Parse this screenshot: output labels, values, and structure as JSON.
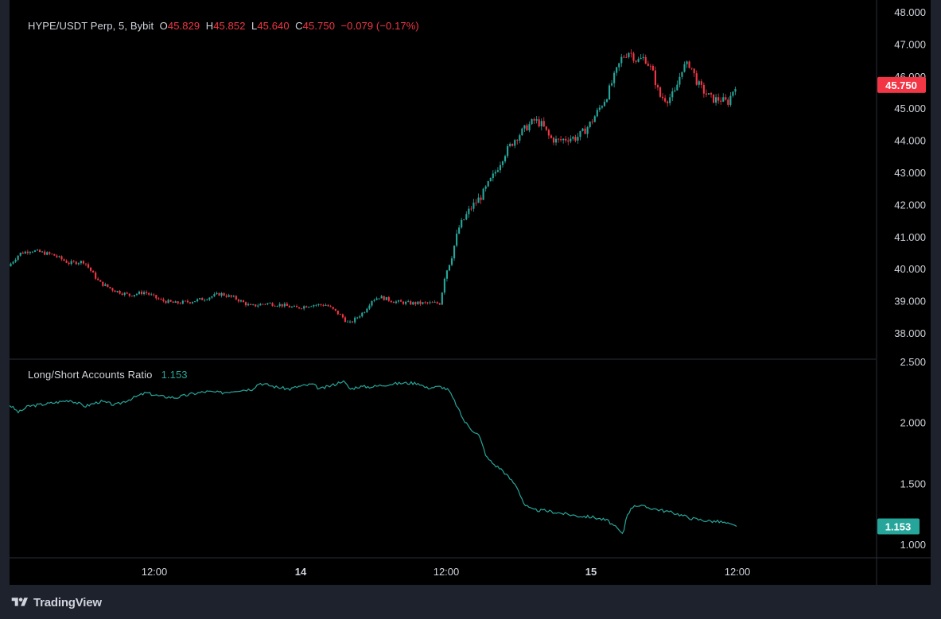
{
  "colors": {
    "background": "#000000",
    "outer": "#1e222d",
    "text": "#d1d4dc",
    "up": "#26a69a",
    "down": "#f23645",
    "ratio_line": "#26a69a",
    "price_badge": "#f23645",
    "ratio_badge": "#26a69a",
    "divider": "#2a2e39"
  },
  "price_legend": {
    "symbol": "HYPE/USDT Perp, 5, Bybit",
    "o_label": "O",
    "o_value": "45.829",
    "h_label": "H",
    "h_value": "45.852",
    "l_label": "L",
    "l_value": "45.640",
    "c_label": "C",
    "c_value": "45.750",
    "change": "−0.079 (−0.17%)"
  },
  "ratio_legend": {
    "name": "Long/Short Accounts Ratio",
    "value": "1.153"
  },
  "brand": {
    "name": "TradingView",
    "icon": "tradingview-logo-icon"
  },
  "chart_data": [
    {
      "type": "candlestick",
      "title": "HYPE/USDT Perp, 5, Bybit",
      "ylim": [
        37.6,
        48.0
      ],
      "y_ticks": [
        "48.000",
        "47.000",
        "46.000",
        "45.000",
        "44.000",
        "43.000",
        "42.000",
        "41.000",
        "40.000",
        "39.000",
        "38.000"
      ],
      "y_tick_values": [
        48,
        47,
        46,
        45,
        44,
        43,
        42,
        41,
        40,
        39,
        38
      ],
      "last_price": 45.75,
      "last_price_label": "45.750",
      "x_tick_labels": [
        "12:00",
        "14",
        "12:00",
        "15",
        "12:00"
      ],
      "close_path": [
        [
          0,
          40.1
        ],
        [
          1.5,
          40.5
        ],
        [
          3,
          40.6
        ],
        [
          6,
          40.45
        ],
        [
          8,
          40.2
        ],
        [
          10,
          40.25
        ],
        [
          12,
          39.6
        ],
        [
          14,
          39.35
        ],
        [
          16,
          39.2
        ],
        [
          18,
          39.3
        ],
        [
          20,
          39.05
        ],
        [
          22,
          38.95
        ],
        [
          24,
          39.0
        ],
        [
          26,
          39.1
        ],
        [
          28,
          39.25
        ],
        [
          30,
          39.1
        ],
        [
          32,
          38.85
        ],
        [
          34,
          38.95
        ],
        [
          36,
          38.9
        ],
        [
          38,
          38.8
        ],
        [
          40,
          38.9
        ],
        [
          42,
          38.9
        ],
        [
          44,
          38.55
        ],
        [
          45,
          38.3
        ],
        [
          47,
          38.7
        ],
        [
          48,
          39.05
        ],
        [
          49,
          39.15
        ],
        [
          51,
          39.0
        ],
        [
          53,
          38.95
        ],
        [
          56,
          38.95
        ],
        [
          57,
          38.95
        ],
        [
          57.6,
          39.8
        ],
        [
          58.5,
          40.4
        ],
        [
          59.5,
          41.3
        ],
        [
          61,
          41.9
        ],
        [
          62.5,
          42.3
        ],
        [
          64,
          42.9
        ],
        [
          65.5,
          43.6
        ],
        [
          67,
          44.1
        ],
        [
          68.5,
          44.45
        ],
        [
          69.5,
          44.65
        ],
        [
          70.5,
          44.5
        ],
        [
          71.5,
          44.1
        ],
        [
          72.5,
          44.0
        ],
        [
          74,
          44.1
        ],
        [
          75,
          44.1
        ],
        [
          76,
          44.3
        ],
        [
          77,
          44.6
        ],
        [
          78,
          45.0
        ],
        [
          79,
          45.4
        ],
        [
          80,
          46.0
        ],
        [
          81,
          46.6
        ],
        [
          82,
          46.8
        ],
        [
          83,
          46.5
        ],
        [
          84,
          46.6
        ],
        [
          85,
          46.2
        ],
        [
          86,
          45.4
        ],
        [
          87,
          45.3
        ],
        [
          88,
          45.5
        ],
        [
          89,
          46.3
        ],
        [
          90,
          46.4
        ],
        [
          91,
          45.8
        ],
        [
          92,
          45.5
        ],
        [
          93,
          45.3
        ],
        [
          94,
          45.3
        ],
        [
          95,
          45.2
        ],
        [
          96,
          45.75
        ]
      ]
    },
    {
      "type": "line",
      "title": "Long/Short Accounts Ratio",
      "ylim": [
        0.9,
        2.5
      ],
      "y_ticks": [
        "2.500",
        "2.000",
        "1.500",
        "1.000"
      ],
      "y_tick_values": [
        2.5,
        2.0,
        1.5,
        1.0
      ],
      "last_value": 1.153,
      "last_value_label": "1.153",
      "series_path": [
        [
          0,
          2.15
        ],
        [
          1.2,
          2.09
        ],
        [
          2.5,
          2.14
        ],
        [
          5,
          2.16
        ],
        [
          8,
          2.19
        ],
        [
          10,
          2.14
        ],
        [
          12,
          2.18
        ],
        [
          14,
          2.15
        ],
        [
          16,
          2.2
        ],
        [
          18,
          2.25
        ],
        [
          20,
          2.22
        ],
        [
          22,
          2.21
        ],
        [
          24,
          2.24
        ],
        [
          26,
          2.26
        ],
        [
          28,
          2.25
        ],
        [
          30,
          2.27
        ],
        [
          32,
          2.28
        ],
        [
          33,
          2.33
        ],
        [
          35,
          2.3
        ],
        [
          37,
          2.28
        ],
        [
          38,
          2.3
        ],
        [
          40,
          2.32
        ],
        [
          41,
          2.28
        ],
        [
          43,
          2.32
        ],
        [
          44,
          2.35
        ],
        [
          45,
          2.28
        ],
        [
          46,
          2.3
        ],
        [
          48,
          2.3
        ],
        [
          50,
          2.32
        ],
        [
          52,
          2.33
        ],
        [
          54,
          2.33
        ],
        [
          55,
          2.29
        ],
        [
          57,
          2.3
        ],
        [
          58,
          2.27
        ],
        [
          59,
          2.15
        ],
        [
          60,
          2.02
        ],
        [
          61,
          1.95
        ],
        [
          62,
          1.9
        ],
        [
          63,
          1.72
        ],
        [
          64,
          1.66
        ],
        [
          65,
          1.62
        ],
        [
          66,
          1.55
        ],
        [
          67,
          1.48
        ],
        [
          68,
          1.33
        ],
        [
          69,
          1.29
        ],
        [
          71,
          1.28
        ],
        [
          73,
          1.26
        ],
        [
          75,
          1.24
        ],
        [
          77,
          1.23
        ],
        [
          79,
          1.2
        ],
        [
          80.5,
          1.12
        ],
        [
          81,
          1.08
        ],
        [
          81.5,
          1.25
        ],
        [
          82.5,
          1.33
        ],
        [
          85,
          1.3
        ],
        [
          88,
          1.26
        ],
        [
          90,
          1.22
        ],
        [
          92,
          1.2
        ],
        [
          94,
          1.19
        ],
        [
          96,
          1.153
        ]
      ]
    }
  ]
}
